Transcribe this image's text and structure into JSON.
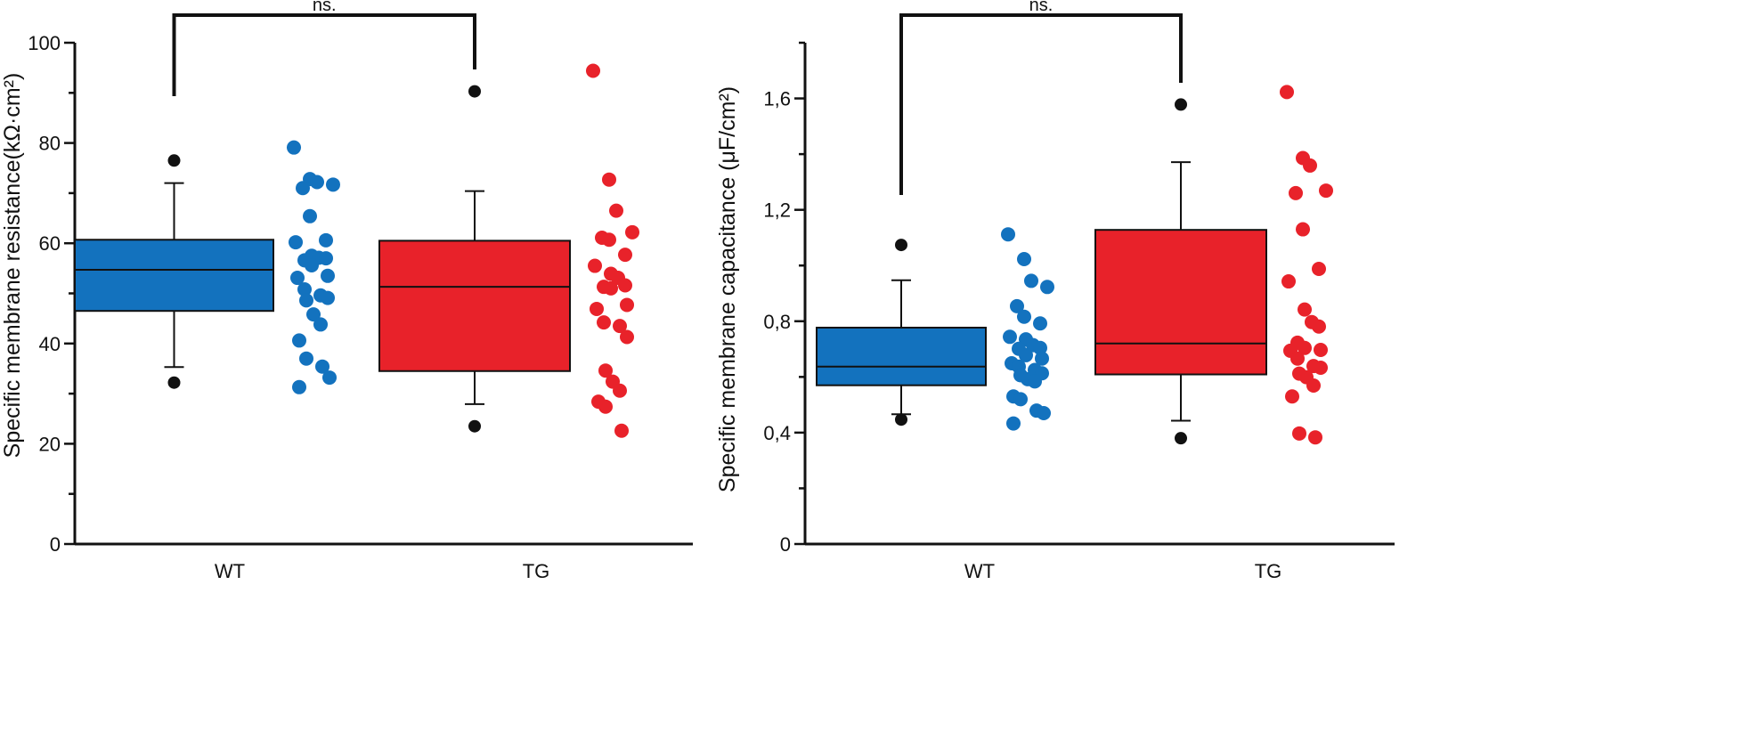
{
  "chart_data": [
    {
      "type": "box",
      "ylabel": "Specific membrane resistance(kΩ·cm²)",
      "ylim": [
        0,
        100
      ],
      "yticks": [
        0,
        20,
        40,
        60,
        80,
        100
      ],
      "ytick_labels": [
        "0",
        "20",
        "40",
        "60",
        "80",
        "100"
      ],
      "categories": [
        "WT",
        "TG"
      ],
      "significance": {
        "label": "ns.",
        "between": [
          "WT",
          "TG"
        ]
      },
      "boxes": [
        {
          "name": "WT",
          "color": "#1372be",
          "q1": 46.5,
          "median": 54.7,
          "q3": 60.7,
          "whisker_low": 35.3,
          "whisker_high": 72.0,
          "outliers": [
            32.2,
            76.5
          ]
        },
        {
          "name": "TG",
          "color": "#e8222a",
          "q1": 34.5,
          "median": 51.3,
          "q3": 60.5,
          "whisker_low": 27.9,
          "whisker_high": 70.4,
          "outliers": [
            23.5,
            90.3
          ]
        }
      ],
      "points": [
        {
          "name": "WT",
          "color": "#1372be",
          "values": [
            79.1,
            72.8,
            72.2,
            71.7,
            71.0,
            65.4,
            60.6,
            60.2,
            57.5,
            57.1,
            57.0,
            56.6,
            55.6,
            53.5,
            53.1,
            50.8,
            49.6,
            49.1,
            48.6,
            45.8,
            43.8,
            40.6,
            37.0,
            35.4,
            33.2,
            31.3
          ]
        },
        {
          "name": "TG",
          "color": "#e8222a",
          "values": [
            94.4,
            72.7,
            66.5,
            62.2,
            61.1,
            60.7,
            57.7,
            55.5,
            53.9,
            53.1,
            51.6,
            51.3,
            51.0,
            47.7,
            46.9,
            44.2,
            43.5,
            41.3,
            34.6,
            32.4,
            30.6,
            28.4,
            27.4,
            22.6
          ]
        }
      ]
    },
    {
      "type": "box",
      "ylabel": "Specific membrane capacitance (μF/cm²)",
      "ylim": [
        0,
        1.8
      ],
      "yticks": [
        0,
        0.4,
        0.8,
        1.2,
        1.6
      ],
      "ytick_labels": [
        "0",
        "0,4",
        "0,8",
        "1,2",
        "1,6"
      ],
      "categories": [
        "WT",
        "TG"
      ],
      "significance": {
        "label": "ns.",
        "between": [
          "WT",
          "TG"
        ]
      },
      "boxes": [
        {
          "name": "WT",
          "color": "#1372be",
          "q1": 0.57,
          "median": 0.637,
          "q3": 0.777,
          "whisker_low": 0.466,
          "whisker_high": 0.947,
          "outliers": [
            0.447,
            1.074
          ]
        },
        {
          "name": "TG",
          "color": "#e8222a",
          "q1": 0.609,
          "median": 0.72,
          "q3": 1.128,
          "whisker_low": 0.443,
          "whisker_high": 1.371,
          "outliers": [
            0.38,
            1.578
          ]
        },
        {
          "name": "_",
          "color": "#000000",
          "q1": 0,
          "median": 0,
          "q3": 0,
          "whisker_low": 0,
          "whisker_high": 0,
          "outliers": []
        }
      ],
      "points": [
        {
          "name": "WT",
          "color": "#1372be",
          "values": [
            1.112,
            1.023,
            0.945,
            0.923,
            0.854,
            0.816,
            0.792,
            0.744,
            0.735,
            0.714,
            0.704,
            0.701,
            0.678,
            0.666,
            0.649,
            0.637,
            0.625,
            0.613,
            0.606,
            0.592,
            0.584,
            0.53,
            0.52,
            0.479,
            0.47,
            0.433
          ]
        },
        {
          "name": "TG",
          "color": "#e8222a",
          "values": [
            1.623,
            1.386,
            1.359,
            1.269,
            1.26,
            1.13,
            0.988,
            0.943,
            0.842,
            0.797,
            0.781,
            0.723,
            0.704,
            0.697,
            0.694,
            0.666,
            0.639,
            0.633,
            0.612,
            0.599,
            0.569,
            0.53,
            0.397,
            0.383
          ]
        }
      ]
    }
  ]
}
